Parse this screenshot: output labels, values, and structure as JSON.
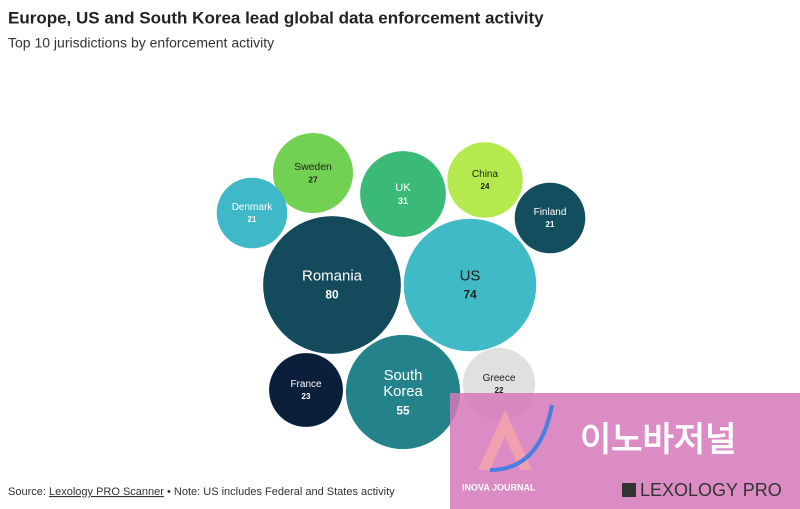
{
  "chart_data": {
    "type": "bubble",
    "title": "Europe, US and South Korea lead global data enforcement activity",
    "subtitle": "Top 10 jurisdictions by enforcement activity",
    "categories": [
      "Sweden",
      "UK",
      "China",
      "Denmark",
      "Finland",
      "Romania",
      "US",
      "France",
      "South Korea",
      "Greece"
    ],
    "values": [
      27,
      31,
      24,
      21,
      21,
      80,
      74,
      23,
      55,
      22
    ],
    "colors": [
      "#72d052",
      "#3bba77",
      "#b5ea4e",
      "#3fb8c8",
      "#134e5e",
      "#134a5c",
      "#3fbac6",
      "#0b1f3a",
      "#24838a",
      "#e0e0e0"
    ],
    "source_prefix": "Source:",
    "source_link": "Lexology PRO Scanner",
    "note": "• Note: US includes Federal and States activity"
  },
  "watermark": {
    "korean": "이노바저널",
    "brand": "INOVA JOURNAL",
    "lexology": "LEXOLOGY PRO"
  }
}
